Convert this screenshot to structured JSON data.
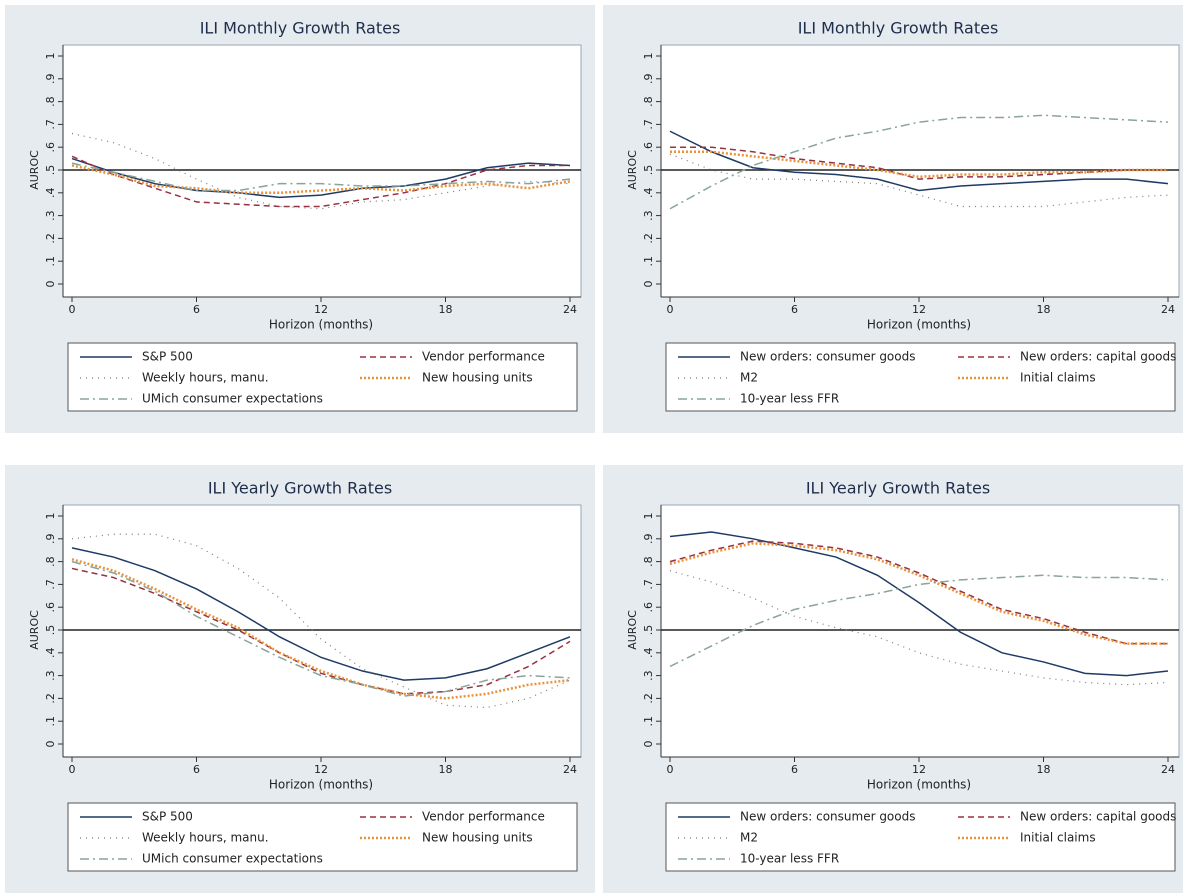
{
  "chart_data": [
    {
      "type": "line",
      "title": "ILI Monthly Growth Rates",
      "xlabel": "Horizon (months)",
      "ylabel": "AUROC",
      "x": [
        0,
        2,
        4,
        6,
        8,
        10,
        12,
        14,
        16,
        18,
        20,
        22,
        24
      ],
      "xlim": [
        0,
        24
      ],
      "xticks": [
        0,
        6,
        12,
        18,
        24
      ],
      "ylim": [
        0,
        1
      ],
      "yticks": [
        0,
        {
          "value": 0.1,
          "label": ".1"
        },
        {
          "value": 0.2,
          "label": ".2"
        },
        {
          "value": 0.3,
          "label": ".3"
        },
        {
          "value": 0.4,
          "label": ".4"
        },
        {
          "value": 0.5,
          "label": ".5"
        },
        {
          "value": 0.6,
          "label": ".6"
        },
        {
          "value": 0.7,
          "label": ".7"
        },
        {
          "value": 0.8,
          "label": ".8"
        },
        {
          "value": 0.9,
          "label": ".9"
        },
        1
      ],
      "reference_line": 0.5,
      "series": [
        {
          "name": "S&P 500",
          "color": "#1f3a66",
          "style": "solid",
          "values": [
            0.55,
            0.49,
            0.44,
            0.41,
            0.4,
            0.38,
            0.39,
            0.42,
            0.43,
            0.46,
            0.51,
            0.53,
            0.52
          ]
        },
        {
          "name": "Vendor performance",
          "color": "#9a3040",
          "style": "dashed",
          "values": [
            0.56,
            0.48,
            0.42,
            0.36,
            0.35,
            0.34,
            0.34,
            0.37,
            0.4,
            0.44,
            0.5,
            0.52,
            0.52
          ]
        },
        {
          "name": "Weekly hours, manu.",
          "color": "#7a7a7a",
          "style": "dotted",
          "values": [
            0.66,
            0.62,
            0.55,
            0.46,
            0.38,
            0.34,
            0.33,
            0.36,
            0.37,
            0.4,
            0.43,
            0.45,
            0.44
          ]
        },
        {
          "name": "New housing units",
          "color": "#e8923a",
          "style": "thickdotted",
          "values": [
            0.52,
            0.48,
            0.43,
            0.42,
            0.4,
            0.4,
            0.41,
            0.42,
            0.41,
            0.43,
            0.44,
            0.42,
            0.45
          ]
        },
        {
          "name": "UMich consumer expectations",
          "color": "#8aa39b",
          "style": "dashdot",
          "values": [
            0.53,
            0.49,
            0.45,
            0.41,
            0.41,
            0.44,
            0.44,
            0.43,
            0.43,
            0.44,
            0.45,
            0.44,
            0.46
          ]
        }
      ]
    },
    {
      "type": "line",
      "title": "ILI Monthly Growth Rates",
      "xlabel": "Horizon (months)",
      "ylabel": "AUROC",
      "x": [
        0,
        2,
        4,
        6,
        8,
        10,
        12,
        14,
        16,
        18,
        20,
        22,
        24
      ],
      "xlim": [
        0,
        24
      ],
      "xticks": [
        0,
        6,
        12,
        18,
        24
      ],
      "ylim": [
        0,
        1
      ],
      "yticks": [
        0,
        {
          "value": 0.1,
          "label": ".1"
        },
        {
          "value": 0.2,
          "label": ".2"
        },
        {
          "value": 0.3,
          "label": ".3"
        },
        {
          "value": 0.4,
          "label": ".4"
        },
        {
          "value": 0.5,
          "label": ".5"
        },
        {
          "value": 0.6,
          "label": ".6"
        },
        {
          "value": 0.7,
          "label": ".7"
        },
        {
          "value": 0.8,
          "label": ".8"
        },
        {
          "value": 0.9,
          "label": ".9"
        },
        1
      ],
      "reference_line": 0.5,
      "series": [
        {
          "name": "New orders: consumer goods",
          "color": "#1f3a66",
          "style": "solid",
          "values": [
            0.67,
            0.58,
            0.51,
            0.49,
            0.48,
            0.46,
            0.41,
            0.43,
            0.44,
            0.45,
            0.46,
            0.46,
            0.44
          ]
        },
        {
          "name": "New orders: capital goods",
          "color": "#9a3040",
          "style": "dashed",
          "values": [
            0.6,
            0.6,
            0.58,
            0.55,
            0.53,
            0.51,
            0.46,
            0.47,
            0.47,
            0.48,
            0.49,
            0.5,
            0.5
          ]
        },
        {
          "name": "M2",
          "color": "#7a7a7a",
          "style": "dotted",
          "values": [
            0.57,
            0.5,
            0.46,
            0.46,
            0.45,
            0.44,
            0.39,
            0.34,
            0.34,
            0.34,
            0.36,
            0.38,
            0.39
          ]
        },
        {
          "name": "Initial claims",
          "color": "#e8923a",
          "style": "thickdotted",
          "values": [
            0.58,
            0.58,
            0.56,
            0.54,
            0.52,
            0.5,
            0.47,
            0.48,
            0.48,
            0.49,
            0.49,
            0.5,
            0.5
          ]
        },
        {
          "name": "10-year less FFR",
          "color": "#8aa39b",
          "style": "dashdot",
          "values": [
            0.33,
            0.43,
            0.52,
            0.58,
            0.64,
            0.67,
            0.71,
            0.73,
            0.73,
            0.74,
            0.73,
            0.72,
            0.71
          ]
        }
      ]
    },
    {
      "type": "line",
      "title": "ILI Yearly Growth Rates",
      "xlabel": "Horizon (months)",
      "ylabel": "AUROC",
      "x": [
        0,
        2,
        4,
        6,
        8,
        10,
        12,
        14,
        16,
        18,
        20,
        22,
        24
      ],
      "xlim": [
        0,
        24
      ],
      "xticks": [
        0,
        6,
        12,
        18,
        24
      ],
      "ylim": [
        0,
        1
      ],
      "yticks": [
        0,
        {
          "value": 0.1,
          "label": ".1"
        },
        {
          "value": 0.2,
          "label": ".2"
        },
        {
          "value": 0.3,
          "label": ".3"
        },
        {
          "value": 0.4,
          "label": ".4"
        },
        {
          "value": 0.5,
          "label": ".5"
        },
        {
          "value": 0.6,
          "label": ".6"
        },
        {
          "value": 0.7,
          "label": ".7"
        },
        {
          "value": 0.8,
          "label": ".8"
        },
        {
          "value": 0.9,
          "label": ".9"
        },
        1
      ],
      "reference_line": 0.5,
      "series": [
        {
          "name": "S&P 500",
          "color": "#1f3a66",
          "style": "solid",
          "values": [
            0.86,
            0.82,
            0.76,
            0.68,
            0.58,
            0.47,
            0.38,
            0.32,
            0.28,
            0.29,
            0.33,
            0.4,
            0.47
          ]
        },
        {
          "name": "Vendor performance",
          "color": "#9a3040",
          "style": "dashed",
          "values": [
            0.77,
            0.73,
            0.66,
            0.58,
            0.5,
            0.4,
            0.31,
            0.26,
            0.22,
            0.23,
            0.26,
            0.34,
            0.45
          ]
        },
        {
          "name": "Weekly hours, manu.",
          "color": "#7a7a7a",
          "style": "dotted",
          "values": [
            0.9,
            0.92,
            0.92,
            0.87,
            0.77,
            0.64,
            0.46,
            0.33,
            0.25,
            0.17,
            0.16,
            0.2,
            0.28
          ]
        },
        {
          "name": "New housing units",
          "color": "#e8923a",
          "style": "thickdotted",
          "values": [
            0.81,
            0.76,
            0.68,
            0.59,
            0.51,
            0.4,
            0.32,
            0.26,
            0.22,
            0.2,
            0.22,
            0.26,
            0.28
          ]
        },
        {
          "name": "UMich consumer expectations",
          "color": "#8aa39b",
          "style": "dashdot",
          "values": [
            0.8,
            0.75,
            0.67,
            0.56,
            0.47,
            0.38,
            0.3,
            0.26,
            0.21,
            0.23,
            0.28,
            0.3,
            0.29
          ]
        }
      ]
    },
    {
      "type": "line",
      "title": "ILI Yearly Growth Rates",
      "xlabel": "Horizon (months)",
      "ylabel": "AUROC",
      "x": [
        0,
        2,
        4,
        6,
        8,
        10,
        12,
        14,
        16,
        18,
        20,
        22,
        24
      ],
      "xlim": [
        0,
        24
      ],
      "xticks": [
        0,
        6,
        12,
        18,
        24
      ],
      "ylim": [
        0,
        1
      ],
      "yticks": [
        0,
        {
          "value": 0.1,
          "label": ".1"
        },
        {
          "value": 0.2,
          "label": ".2"
        },
        {
          "value": 0.3,
          "label": ".3"
        },
        {
          "value": 0.4,
          "label": ".4"
        },
        {
          "value": 0.5,
          "label": ".5"
        },
        {
          "value": 0.6,
          "label": ".6"
        },
        {
          "value": 0.7,
          "label": ".7"
        },
        {
          "value": 0.8,
          "label": ".8"
        },
        {
          "value": 0.9,
          "label": ".9"
        },
        1
      ],
      "reference_line": 0.5,
      "series": [
        {
          "name": "New orders: consumer goods",
          "color": "#1f3a66",
          "style": "solid",
          "values": [
            0.91,
            0.93,
            0.9,
            0.86,
            0.82,
            0.74,
            0.62,
            0.49,
            0.4,
            0.36,
            0.31,
            0.3,
            0.32
          ]
        },
        {
          "name": "New orders: capital goods",
          "color": "#9a3040",
          "style": "dashed",
          "values": [
            0.8,
            0.85,
            0.89,
            0.88,
            0.86,
            0.82,
            0.75,
            0.67,
            0.59,
            0.55,
            0.49,
            0.44,
            0.44
          ]
        },
        {
          "name": "M2",
          "color": "#7a7a7a",
          "style": "dotted",
          "values": [
            0.76,
            0.71,
            0.64,
            0.56,
            0.51,
            0.47,
            0.4,
            0.35,
            0.32,
            0.29,
            0.27,
            0.26,
            0.27
          ]
        },
        {
          "name": "Initial claims",
          "color": "#e8923a",
          "style": "thickdotted",
          "values": [
            0.79,
            0.84,
            0.88,
            0.87,
            0.85,
            0.81,
            0.74,
            0.66,
            0.58,
            0.54,
            0.48,
            0.44,
            0.44
          ]
        },
        {
          "name": "10-year less FFR",
          "color": "#8aa39b",
          "style": "dashdot",
          "values": [
            0.34,
            0.43,
            0.52,
            0.59,
            0.63,
            0.66,
            0.7,
            0.72,
            0.73,
            0.74,
            0.73,
            0.73,
            0.72
          ]
        }
      ]
    }
  ]
}
